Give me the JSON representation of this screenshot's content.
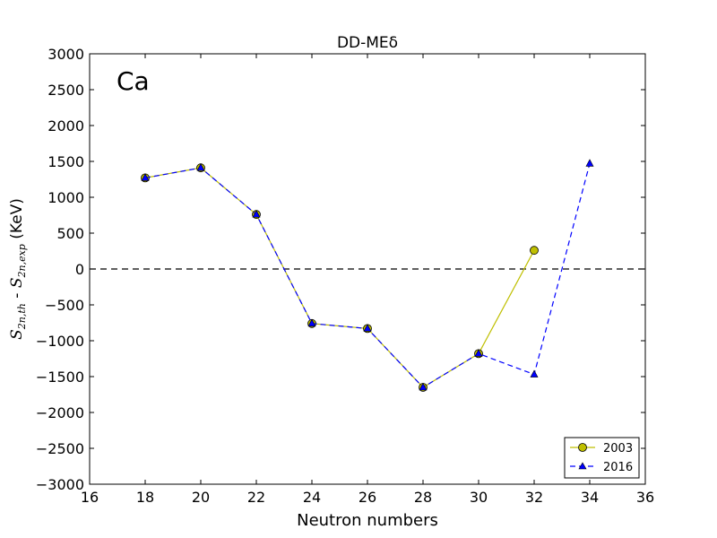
{
  "chart_data": {
    "type": "line",
    "title": "DD-MEδ",
    "element_label": "Ca",
    "xlabel": "Neutron numbers",
    "ylabel": {
      "part1_main": "S",
      "part1_sub": "2n,th",
      "separator": " - ",
      "part2_main": "S",
      "part2_sub": "2n,exp",
      "unit": " (KeV)"
    },
    "xlim": [
      16,
      36
    ],
    "ylim": [
      -3000,
      3000
    ],
    "x_ticks": [
      16,
      18,
      20,
      22,
      24,
      26,
      28,
      30,
      32,
      34,
      36
    ],
    "y_ticks": [
      -3000,
      -2500,
      -2000,
      -1500,
      -1000,
      -500,
      0,
      500,
      1000,
      1500,
      2000,
      2500,
      3000
    ],
    "x_tick_labels": [
      "16",
      "18",
      "20",
      "22",
      "24",
      "26",
      "28",
      "30",
      "32",
      "34",
      "36"
    ],
    "y_tick_labels": [
      "−3000",
      "−2500",
      "−2000",
      "−1500",
      "−1000",
      "−500",
      "0",
      "500",
      "1000",
      "1500",
      "2000",
      "2500",
      "3000"
    ],
    "reference_line": {
      "y": 0,
      "style": "dashed",
      "color": "#000000"
    },
    "grid": false,
    "legend_position": "bottom-right",
    "series": [
      {
        "name": "2003",
        "color": "#bfbf00",
        "line_style": "solid",
        "marker": "circle",
        "x": [
          18,
          20,
          22,
          24,
          26,
          28,
          30,
          32
        ],
        "y": [
          1270,
          1410,
          760,
          -760,
          -830,
          -1650,
          -1180,
          260
        ]
      },
      {
        "name": "2016",
        "color": "#0000ff",
        "line_style": "dashed",
        "marker": "triangle",
        "x": [
          18,
          20,
          22,
          24,
          26,
          28,
          30,
          32,
          34
        ],
        "y": [
          1270,
          1410,
          760,
          -760,
          -830,
          -1650,
          -1180,
          -1470,
          1470
        ]
      }
    ]
  }
}
